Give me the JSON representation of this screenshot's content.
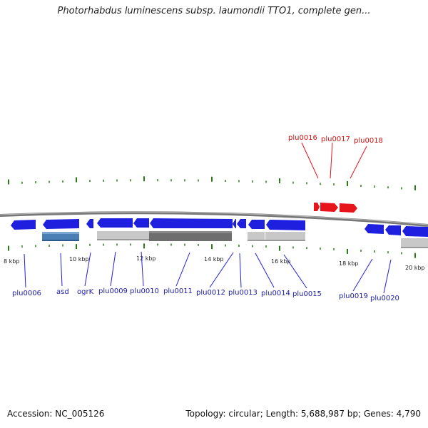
{
  "title": "Photorhabdus luminescens subsp. laumondii TTO1, complete gen...",
  "footer": {
    "accession": "Accession: NC_005126",
    "summary": "Topology: circular; Length: 5,688,987 bp; Genes: 4,790"
  },
  "colors": {
    "backbone": "#888888",
    "forward_gene": "#e8141c",
    "reverse_gene": "#1f1fe0",
    "forward_label": "#cc1111",
    "reverse_label": "#1a1aa8",
    "tick": "#2a7a1a",
    "rna_blue": "#4a7fb5",
    "rna_light": "#c8c8c8",
    "rna_dark": "#6e6e6e"
  },
  "kbp_labels": [
    "8 kbp",
    "10 kbp",
    "12 kbp",
    "14 kbp",
    "16 kbp",
    "18 kbp",
    "20 kbp"
  ],
  "forward_genes": [
    "plu0016",
    "plu0017",
    "plu0018"
  ],
  "reverse_genes": [
    "plu0006",
    "asd",
    "ogrK",
    "plu0009",
    "plu0010",
    "plu0011",
    "plu0012",
    "plu0013",
    "plu0014",
    "plu0015",
    "plu0019",
    "plu0020"
  ]
}
